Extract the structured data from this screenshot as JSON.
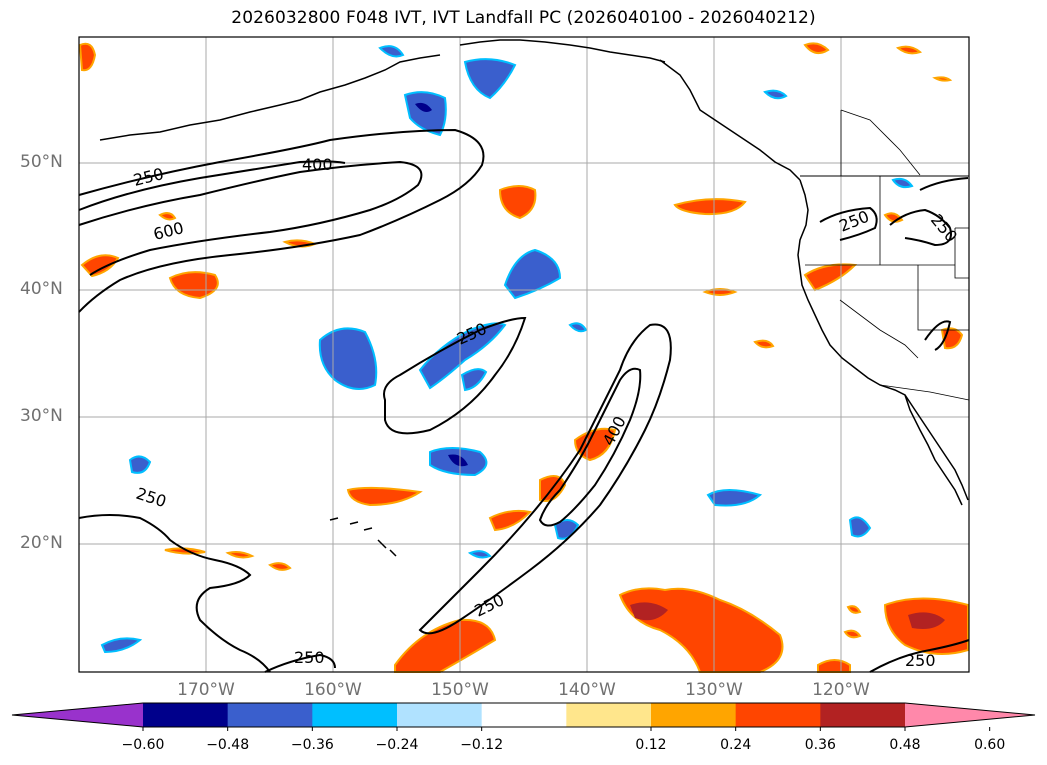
{
  "title": "2026032800 F048 IVT, IVT Landfall PC (2026040100 - 2026040212)",
  "latitude_labels": [
    "50°N",
    "40°N",
    "30°N",
    "20°N"
  ],
  "longitude_labels": [
    "170°W",
    "160°W",
    "150°W",
    "140°W",
    "130°W",
    "120°W"
  ],
  "contour_labels": [
    {
      "text": "250"
    },
    {
      "text": "400"
    },
    {
      "text": "600"
    },
    {
      "text": "250"
    },
    {
      "text": "400"
    },
    {
      "text": "250"
    },
    {
      "text": "250"
    },
    {
      "text": "250"
    },
    {
      "text": "250"
    },
    {
      "text": "250"
    },
    {
      "text": "250"
    }
  ],
  "colorbar": {
    "ticks": [
      "−0.60",
      "−0.48",
      "−0.36",
      "−0.24",
      "−0.12",
      "0.12",
      "0.24",
      "0.36",
      "0.48",
      "0.60"
    ],
    "colors": [
      "#9932cc",
      "#00008b",
      "#3a5fcd",
      "#00bfff",
      "#b0e2ff",
      "#ffffff",
      "#ffe68c",
      "#ffa500",
      "#ff4500",
      "#b22222",
      "#ff88aa"
    ]
  },
  "colors": {
    "contour": "#000000",
    "grid": "#a9a9a9",
    "coast": "#000000"
  }
}
